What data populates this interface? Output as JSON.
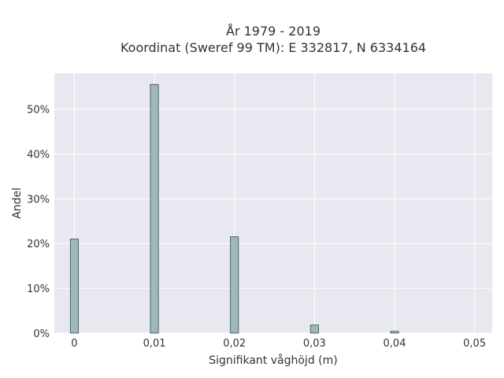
{
  "chart_data": {
    "type": "bar",
    "title": "År 1979 - 2019",
    "subtitle": "Koordinat (Sweref 99 TM): E 332817, N 6334164",
    "xlabel": "Signifikant våghöjd (m)",
    "ylabel": "Andel",
    "x_ticks": [
      "0",
      "0,01",
      "0,02",
      "0,03",
      "0,04",
      "0,05"
    ],
    "x_tick_values": [
      0,
      0.01,
      0.02,
      0.03,
      0.04,
      0.05
    ],
    "y_ticks": [
      "0%",
      "10%",
      "20%",
      "30%",
      "40%",
      "50%"
    ],
    "y_tick_values": [
      0,
      10,
      20,
      30,
      40,
      50
    ],
    "xlim": [
      -0.0025,
      0.0522
    ],
    "ylim": [
      0,
      58
    ],
    "bar_width": 0.001,
    "x": [
      0,
      0.01,
      0.02,
      0.03,
      0.04
    ],
    "values": [
      21.0,
      55.5,
      21.5,
      1.8,
      0.4
    ],
    "grid": true,
    "colors": {
      "plot_background": "#e8e8f0",
      "grid": "#ffffff",
      "bar_fill": "#9fb8b9",
      "bar_stroke": "#3a4a4a"
    }
  }
}
